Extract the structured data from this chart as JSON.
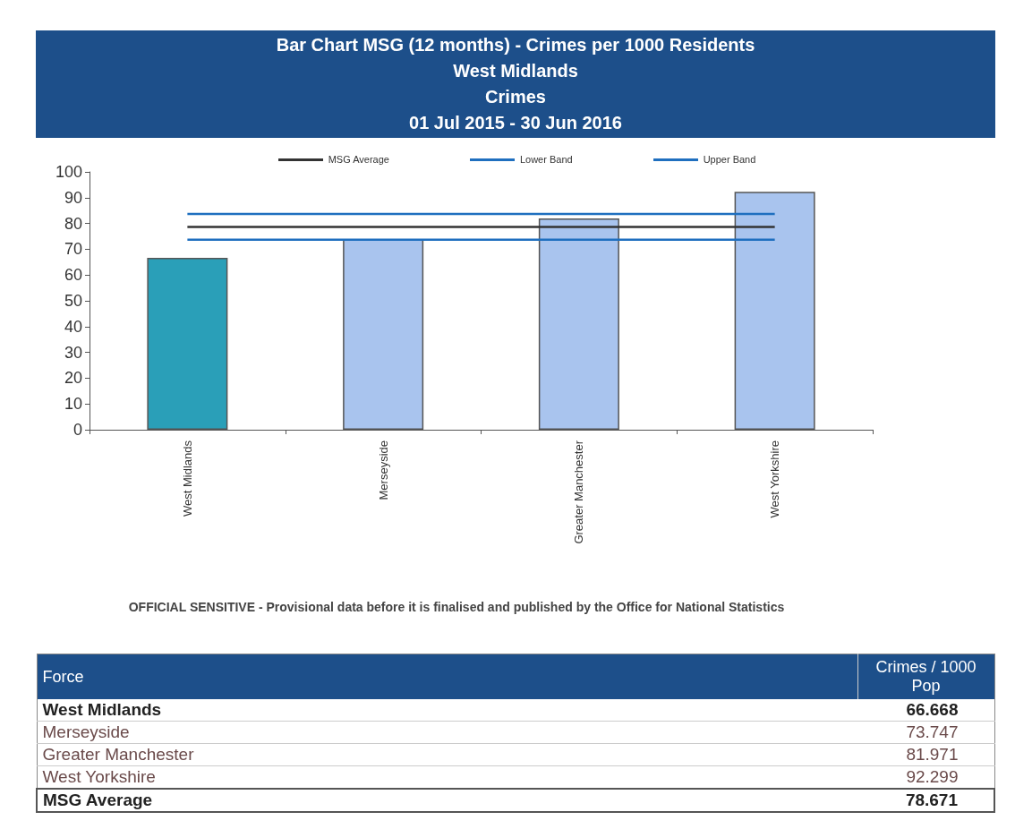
{
  "chart_data": {
    "type": "bar",
    "title": "Bar Chart MSG (12 months) - Crimes per 1000 Residents",
    "subtitle": "West Midlands\nCrimes\n01 Jul 2015 - 30 Jun 2016",
    "categories": [
      "West Midlands",
      "Merseyside",
      "Greater Manchester",
      "West Yorkshire"
    ],
    "values": [
      66.668,
      73.747,
      81.971,
      92.299
    ],
    "colors": [
      "#2a9fb8",
      "#a9c4ee",
      "#a9c4ee",
      "#a9c4ee"
    ],
    "ylim": [
      0,
      100
    ],
    "yticks": [
      0,
      10,
      20,
      30,
      40,
      50,
      60,
      70,
      80,
      90,
      100
    ],
    "ref_lines": [
      {
        "axis": "y",
        "value": 78.671,
        "label": "MSG Average",
        "color": "#333333"
      },
      {
        "axis": "y",
        "value": 73.7,
        "label": "Lower Band",
        "color": "#1f6fbf"
      },
      {
        "axis": "y",
        "value": 83.7,
        "label": "Upper Band",
        "color": "#1f6fbf"
      }
    ],
    "annotations": [
      "OFFICIAL  SENSITIVE - Provisional data before it is finalised and published by the Office for National Statistics",
      "Force",
      "Crimes / 1000 Pop",
      "66.668",
      "73.747",
      "81.971",
      "92.299",
      "MSG Average",
      "78.671"
    ],
    "grid": false,
    "legend": "top"
  }
}
